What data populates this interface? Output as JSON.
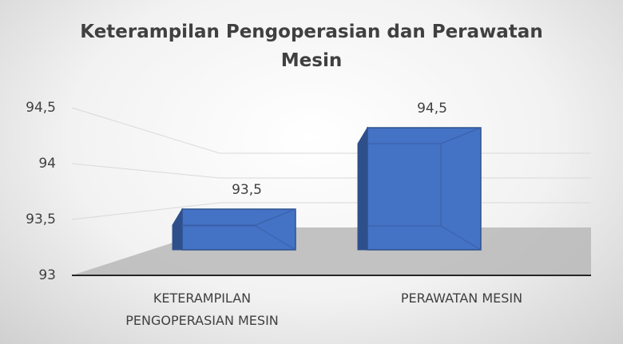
{
  "chart_data": {
    "type": "bar3d",
    "title": "Keterampilan Pengoperasian dan Perawatan Mesin",
    "categories": [
      "KETERAMPILAN PENGOPERASIAN MESIN",
      "PERAWATAN MESIN"
    ],
    "values": [
      93.5,
      94.5
    ],
    "value_labels": [
      "93,5",
      "94,5"
    ],
    "color": "#4472c4",
    "ylim": [
      93,
      94.5
    ],
    "yticks": [
      93,
      {
        "value": 93.5,
        "label": "93,5"
      },
      94,
      {
        "value": 94.5,
        "label": "94,5"
      }
    ],
    "grid": true
  }
}
